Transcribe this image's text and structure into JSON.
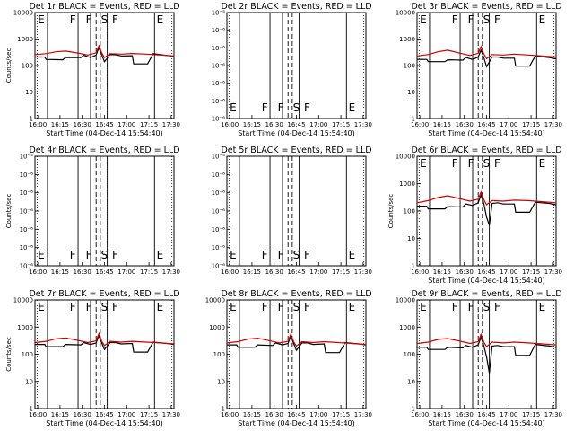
{
  "chart_data": {
    "type": "line",
    "panels": [
      {
        "title": "Det 1r BLACK = Events, RED = LLD",
        "ylabel": "Counts/sec",
        "xlabel": "Start Time (04-Dec-14 15:54:40)",
        "xticks": [
          "16:00",
          "16:15",
          "16:30",
          "16:45",
          "17:00",
          "17:15",
          "17:30"
        ],
        "yscale": "log",
        "ylim": [
          1,
          10000
        ],
        "yticks": [
          "1",
          "10",
          "100",
          "1000",
          "10000"
        ],
        "annotations": [
          "E",
          "F",
          "F",
          "S",
          "F",
          "E"
        ],
        "series": [
          {
            "color": "#000000",
            "x": [
              0,
              7,
              8,
              20,
              22,
              33,
              35,
              40,
              44,
              46,
              48,
              50,
              54,
              58,
              62,
              70,
              71,
              81,
              85,
              95,
              100
            ],
            "y": [
              210,
              210,
              170,
              165,
              200,
              200,
              245,
              200,
              250,
              470,
              250,
              140,
              260,
              255,
              230,
              235,
              115,
              115,
              280,
              240,
              220
            ]
          },
          {
            "color": "#cc0000",
            "x": [
              0,
              8,
              15,
              22,
              30,
              38,
              44,
              46,
              48,
              50,
              54,
              62,
              70,
              80,
              90,
              100
            ],
            "y": [
              260,
              280,
              330,
              350,
              300,
              250,
              300,
              560,
              300,
              200,
              280,
              270,
              285,
              270,
              250,
              230
            ]
          }
        ]
      },
      {
        "title": "Det 2r BLACK = Events, RED = LLD",
        "ylabel": "",
        "xlabel": "Start Time (04-Dec-14 15:54:40)",
        "xticks": [
          "16:00",
          "16:15",
          "16:30",
          "16:45",
          "17:00",
          "17:15",
          "17:30"
        ],
        "yscale": "log",
        "ylim": [
          1e-06,
          1e-05
        ],
        "yticks": [
          "10⁻⁶",
          "10⁻⁶",
          "10⁻⁶",
          "10⁻⁶",
          "10⁻⁶",
          "10⁻⁶",
          "10⁻⁵"
        ],
        "annotations": [
          "E",
          "F",
          "F",
          "S",
          "F",
          "E"
        ],
        "series": []
      },
      {
        "title": "Det 3r BLACK = Events, RED = LLD",
        "ylabel": "",
        "xlabel": "Start Time (04-Dec-14 15:54:40)",
        "xticks": [
          "16:00",
          "16:15",
          "16:30",
          "16:45",
          "17:00",
          "17:15",
          "17:30"
        ],
        "yscale": "log",
        "ylim": [
          1,
          10000
        ],
        "yticks": [
          "1",
          "10",
          "100",
          "1000",
          "10000"
        ],
        "annotations": [
          "E",
          "F",
          "F",
          "S",
          "F",
          "E"
        ],
        "series": [
          {
            "color": "#000000",
            "x": [
              0,
              7,
              8,
              20,
              22,
              33,
              35,
              40,
              44,
              46,
              48,
              50,
              54,
              58,
              62,
              70,
              71,
              81,
              85,
              95,
              100
            ],
            "y": [
              170,
              170,
              140,
              140,
              165,
              160,
              200,
              170,
              210,
              380,
              200,
              90,
              210,
              210,
              190,
              190,
              95,
              95,
              230,
              200,
              180
            ]
          },
          {
            "color": "#cc0000",
            "x": [
              0,
              8,
              15,
              22,
              30,
              38,
              44,
              46,
              48,
              50,
              54,
              62,
              70,
              80,
              90,
              100
            ],
            "y": [
              230,
              260,
              330,
              380,
              300,
              240,
              290,
              520,
              280,
              180,
              260,
              250,
              270,
              250,
              230,
              210
            ]
          }
        ]
      },
      {
        "title": "Det 4r BLACK = Events, RED = LLD",
        "ylabel": "Counts/sec",
        "xlabel": "",
        "xticks": [
          "16:00",
          "16:15",
          "16:30",
          "16:45",
          "17:00",
          "17:15",
          "17:30"
        ],
        "yscale": "log",
        "ylim": [
          1e-06,
          1e-05
        ],
        "yticks": [
          "10⁻⁶",
          "10⁻⁶",
          "10⁻⁶",
          "10⁻⁶",
          "10⁻⁶",
          "10⁻⁶",
          "10⁻⁵"
        ],
        "annotations": [
          "E",
          "F",
          "F",
          "S",
          "F",
          "E"
        ],
        "series": []
      },
      {
        "title": "Det 5r BLACK = Events, RED = LLD",
        "ylabel": "",
        "xlabel": "",
        "xticks": [
          "16:00",
          "16:15",
          "16:30",
          "16:45",
          "17:00",
          "17:15",
          "17:30"
        ],
        "yscale": "log",
        "ylim": [
          1e-06,
          1e-05
        ],
        "yticks": [
          "10⁻⁶",
          "10⁻⁶",
          "10⁻⁶",
          "10⁻⁶",
          "10⁻⁶",
          "10⁻⁶",
          "10⁻⁵"
        ],
        "annotations": [
          "E",
          "F",
          "F",
          "S",
          "F",
          "E"
        ],
        "series": []
      },
      {
        "title": "Det 6r BLACK = Events, RED = LLD",
        "ylabel": "Counts/sec",
        "xlabel": "Start Time (04-Dec-14 15:54:40)",
        "xticks": [
          "16:00",
          "16:15",
          "16:30",
          "16:45",
          "17:00",
          "17:15",
          "17:30"
        ],
        "yscale": "log",
        "ylim": [
          1,
          10000
        ],
        "yticks": [
          "1",
          "10",
          "100",
          "1000",
          "10000"
        ],
        "annotations": [
          "E",
          "F",
          "F",
          "S",
          "F",
          "E"
        ],
        "series": [
          {
            "color": "#000000",
            "x": [
              0,
              7,
              8,
              20,
              22,
              33,
              35,
              40,
              44,
              46,
              48,
              50,
              52,
              54,
              58,
              62,
              70,
              71,
              81,
              85,
              95,
              100
            ],
            "y": [
              150,
              150,
              120,
              120,
              145,
              140,
              180,
              160,
              200,
              380,
              190,
              60,
              30,
              190,
              200,
              180,
              180,
              90,
              90,
              210,
              190,
              170
            ]
          },
          {
            "color": "#cc0000",
            "x": [
              0,
              8,
              15,
              22,
              30,
              38,
              44,
              46,
              48,
              50,
              54,
              62,
              70,
              80,
              90,
              100
            ],
            "y": [
              200,
              240,
              310,
              360,
              290,
              230,
              270,
              500,
              260,
              170,
              240,
              230,
              250,
              240,
              220,
              200
            ]
          }
        ]
      },
      {
        "title": "Det 7r BLACK = Events, RED = LLD",
        "ylabel": "Counts/sec",
        "xlabel": "Start Time (04-Dec-14 15:54:40)",
        "xticks": [
          "16:00",
          "16:15",
          "16:30",
          "16:45",
          "17:00",
          "17:15",
          "17:30"
        ],
        "yscale": "log",
        "ylim": [
          1,
          10000
        ],
        "yticks": [
          "1",
          "10",
          "100",
          "1000",
          "10000"
        ],
        "annotations": [
          "E",
          "F",
          "F",
          "S",
          "F",
          "E"
        ],
        "series": [
          {
            "color": "#000000",
            "x": [
              0,
              7,
              8,
              20,
              22,
              33,
              35,
              40,
              44,
              46,
              48,
              50,
              54,
              58,
              62,
              70,
              71,
              81,
              85,
              95,
              100
            ],
            "y": [
              230,
              230,
              190,
              190,
              230,
              220,
              270,
              230,
              260,
              500,
              260,
              150,
              270,
              270,
              240,
              250,
              120,
              120,
              280,
              250,
              230
            ]
          },
          {
            "color": "#cc0000",
            "x": [
              0,
              8,
              15,
              22,
              30,
              38,
              44,
              46,
              48,
              50,
              54,
              62,
              70,
              80,
              90,
              100
            ],
            "y": [
              270,
              300,
              370,
              400,
              330,
              270,
              310,
              580,
              300,
              210,
              300,
              280,
              300,
              280,
              260,
              240
            ]
          }
        ]
      },
      {
        "title": "Det 8r BLACK = Events, RED = LLD",
        "ylabel": "",
        "xlabel": "Start Time (04-Dec-14 15:54:40)",
        "xticks": [
          "16:00",
          "16:15",
          "16:30",
          "16:45",
          "17:00",
          "17:15",
          "17:30"
        ],
        "yscale": "log",
        "ylim": [
          1,
          10000
        ],
        "yticks": [
          "1",
          "10",
          "100",
          "1000",
          "10000"
        ],
        "annotations": [
          "E",
          "F",
          "F",
          "S",
          "F",
          "E"
        ],
        "series": [
          {
            "color": "#000000",
            "x": [
              0,
              7,
              8,
              20,
              22,
              33,
              35,
              40,
              44,
              46,
              48,
              50,
              54,
              58,
              62,
              70,
              71,
              81,
              85,
              95,
              100
            ],
            "y": [
              220,
              220,
              180,
              180,
              220,
              210,
              260,
              220,
              250,
              480,
              250,
              140,
              260,
              260,
              230,
              240,
              115,
              115,
              270,
              240,
              220
            ]
          },
          {
            "color": "#cc0000",
            "x": [
              0,
              8,
              15,
              22,
              30,
              38,
              44,
              46,
              48,
              50,
              54,
              62,
              70,
              80,
              90,
              100
            ],
            "y": [
              260,
              290,
              360,
              390,
              320,
              260,
              300,
              560,
              290,
              200,
              290,
              270,
              290,
              270,
              250,
              230
            ]
          }
        ]
      },
      {
        "title": "Det 9r BLACK = Events, RED = LLD",
        "ylabel": "",
        "xlabel": "Start Time (04-Dec-14 15:54:40)",
        "xticks": [
          "16:00",
          "16:15",
          "16:30",
          "16:45",
          "17:00",
          "17:15",
          "17:30"
        ],
        "yscale": "log",
        "ylim": [
          1,
          10000
        ],
        "yticks": [
          "1",
          "10",
          "100",
          "1000",
          "10000"
        ],
        "annotations": [
          "E",
          "F",
          "F",
          "S",
          "F",
          "E"
        ],
        "series": [
          {
            "color": "#000000",
            "x": [
              0,
              7,
              8,
              20,
              22,
              33,
              35,
              40,
              44,
              46,
              48,
              50,
              52,
              54,
              58,
              62,
              70,
              71,
              81,
              85,
              95,
              100
            ],
            "y": [
              180,
              180,
              150,
              150,
              180,
              170,
              210,
              180,
              220,
              420,
              210,
              80,
              20,
              200,
              210,
              190,
              190,
              90,
              90,
              230,
              200,
              180
            ]
          },
          {
            "color": "#cc0000",
            "x": [
              0,
              8,
              15,
              22,
              30,
              38,
              44,
              46,
              48,
              50,
              54,
              62,
              70,
              80,
              90,
              100
            ],
            "y": [
              250,
              280,
              350,
              380,
              310,
              250,
              290,
              540,
              280,
              190,
              280,
              260,
              280,
              260,
              240,
              220
            ]
          }
        ]
      }
    ]
  }
}
